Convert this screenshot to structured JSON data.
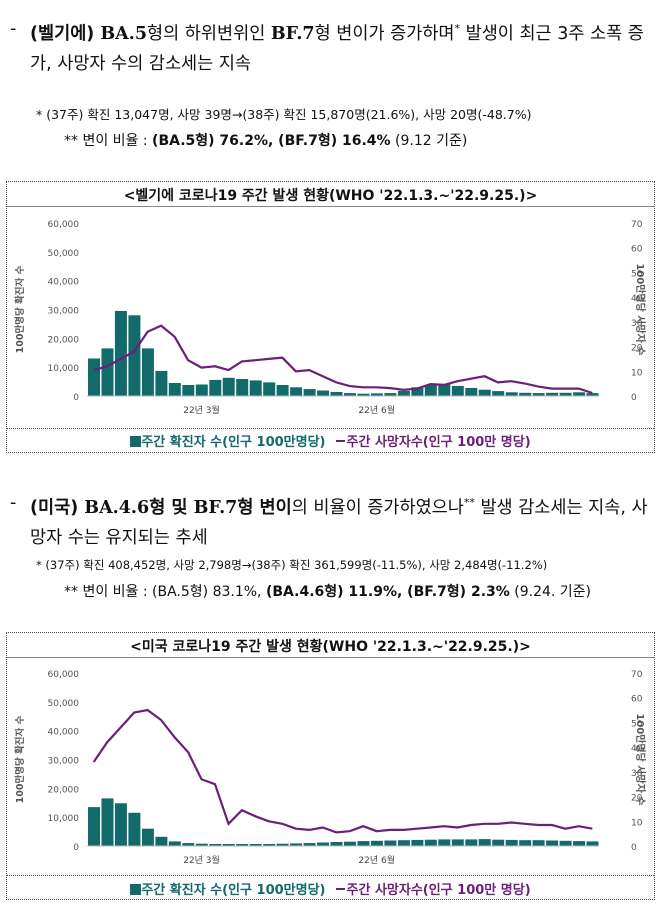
{
  "section_belgium": {
    "dash": "-",
    "parts": [
      "(벨기에) ",
      "BA.5",
      "형의 하위변위인 ",
      "BF.7",
      "형 변이가 증가하며",
      "*",
      " 발생이 최근 3주 소폭 증가, 사망자 수의 감소세는 지속"
    ],
    "note_star": "* (37주) 확진 13,047명, 사망 39명→(38주) 확진 15,870명(21.6%), 사망 20명(-48.7%)",
    "note_double_prefix": "** 변이 비율 : ",
    "note_double_bold": "(BA.5형) 76.2%, (BF.7형) 16.4%",
    "note_double_suffix": " (9.12 기준)"
  },
  "section_usa": {
    "dash": "-",
    "parts": [
      "(미국) ",
      "BA.4.6",
      "형 및 ",
      "BF.7",
      "형 변이",
      "의 비율이 증가하였으나",
      "**",
      " 발생 감소세는 지속, 사망자 수는 유지되는 추세"
    ],
    "note_star": "* (37주) 확진 408,452명, 사망 2,798명→(38주) 확진 361,599명(-11.5%), 사망 2,484명(-11.2%)",
    "note_double_prefix": "** 변이 비율 : (BA.5형) 83.1%, ",
    "note_double_bold": "(BA.4.6형) 11.9%, (BF.7형) 2.3%",
    "note_double_suffix": " (9.24. 기준)"
  },
  "legend": {
    "cases": "주간 확진자 수(인구 100만명당)",
    "deaths": "주간 사망자수(인구 100만 명당)"
  },
  "colors": {
    "bar": "#136a6a",
    "line": "#6b1f7a"
  },
  "chart_data": [
    {
      "type": "bar+line",
      "title": "<벨기에 코로나19 주간 발생 현황(WHO '22.1.3.~'22.9.25.)>",
      "ylabel_left": "100만명당 확진자 수",
      "ylabel_right": "100만명당 사망자 수",
      "ylim_left": [
        0,
        60000
      ],
      "ylim_right": [
        0,
        70
      ],
      "yticks_left": [
        "0",
        "10,000",
        "20,000",
        "30,000",
        "40,000",
        "50,000",
        "60,000"
      ],
      "yticks_right": [
        "0",
        "10",
        "20",
        "30",
        "40",
        "50",
        "60",
        "70"
      ],
      "xtick_labels": [
        {
          "index": 8,
          "label": "22년 3월"
        },
        {
          "index": 21,
          "label": "22년 6월"
        }
      ],
      "legend": [
        "주간 확진자 수(인구 100만명당)",
        "주간 사망자수(인구 100만 명당)"
      ],
      "series": [
        {
          "name": "주간 확진자 수(인구 100만명당)",
          "kind": "bar",
          "values": [
            13000,
            16500,
            29500,
            28000,
            16500,
            8700,
            4500,
            3800,
            4000,
            5600,
            6300,
            5900,
            5400,
            4700,
            3800,
            3000,
            2400,
            1900,
            1400,
            1000,
            800,
            900,
            1000,
            1800,
            3000,
            3800,
            4200,
            3500,
            2800,
            2200,
            1700,
            1300,
            1100,
            1000,
            1100,
            1100,
            1300,
            1000
          ]
        },
        {
          "name": "주간 사망자수(인구 100만 명당)",
          "kind": "line",
          "values": [
            10.5,
            12,
            15,
            18,
            26,
            28.5,
            24,
            14.5,
            11.5,
            12,
            10.5,
            14,
            14.5,
            15,
            15.5,
            10,
            10.5,
            8,
            5.5,
            4,
            3.5,
            3.5,
            3.2,
            2.5,
            3,
            4.8,
            4.5,
            6,
            7,
            8,
            5.5,
            6,
            5,
            3.8,
            3,
            3,
            3,
            1.2
          ]
        }
      ]
    },
    {
      "type": "bar+line",
      "title": "<미국 코로나19 주간 발생 현황(WHO '22.1.3.~'22.9.25.)>",
      "ylabel_left": "100만명당 확진자 수",
      "ylabel_right": "100만명당 사망자 수",
      "ylim_left": [
        0,
        60000
      ],
      "ylim_right": [
        0,
        70
      ],
      "yticks_left": [
        "0",
        "10,000",
        "20,000",
        "30,000",
        "40,000",
        "50,000",
        "60,000"
      ],
      "yticks_right": [
        "0",
        "10",
        "20",
        "30",
        "40",
        "50",
        "60",
        "70"
      ],
      "xtick_labels": [
        {
          "index": 8,
          "label": "22년 3월"
        },
        {
          "index": 21,
          "label": "22년 6월"
        }
      ],
      "legend": [
        "주간 확진자 수(인구 100만명당)",
        "주간 사망자수(인구 100만 명당)"
      ],
      "series": [
        {
          "name": "주간 확진자 수(인구 100만명당)",
          "kind": "bar",
          "values": [
            13500,
            16500,
            14800,
            11500,
            6000,
            3200,
            1600,
            1000,
            800,
            700,
            700,
            700,
            700,
            700,
            800,
            900,
            1000,
            1200,
            1400,
            1500,
            1700,
            1800,
            1900,
            2000,
            2100,
            2200,
            2300,
            2300,
            2300,
            2400,
            2200,
            2100,
            2000,
            2000,
            1900,
            1800,
            1700,
            1600
          ]
        },
        {
          "name": "주간 사망자수(인구 100만 명당)",
          "kind": "line",
          "values": [
            34,
            42,
            48,
            54,
            55,
            51,
            44,
            38,
            27,
            25,
            9,
            14.5,
            12,
            10,
            9,
            7,
            6.5,
            7.5,
            5.5,
            6,
            8,
            6,
            6.5,
            6.5,
            7,
            7.5,
            8,
            7.5,
            8.5,
            9,
            9,
            9.5,
            9,
            8.5,
            8.5,
            7,
            8,
            7
          ]
        }
      ]
    }
  ]
}
